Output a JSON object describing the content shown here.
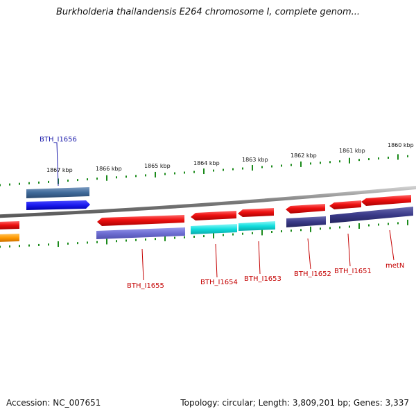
{
  "title": "Burkholderia thailandensis E264 chromosome I, complete genom...",
  "footer": {
    "accession": "Accession: NC_007651",
    "summary": "Topology: circular; Length: 3,809,201 bp; Genes: 3,337"
  },
  "colors": {
    "backbone": "#8a8a8a",
    "tick": "#1a8a1a",
    "label_selected": "#1a1aaa",
    "label_default": "#c40000",
    "forward_gene": "#1a1aee",
    "reverse_gene": "#ee1111",
    "pseudo_light": "#6677cc",
    "cyan_gene": "#11dddd",
    "dark_purple": "#3a3a88",
    "orange_gene": "#ff9900"
  },
  "tick_labels": [
    "1867 kbp",
    "1866 kbp",
    "1865 kbp",
    "1864 kbp",
    "1863 kbp",
    "1862 kbp",
    "1861 kbp",
    "1860 kbp"
  ],
  "genes": [
    {
      "id": "BTH_I1656",
      "label": "BTH_I1656",
      "strand": "forward",
      "selected": true
    },
    {
      "id": "BTH_I1655",
      "label": "BTH_I1655",
      "strand": "reverse",
      "selected": false
    },
    {
      "id": "BTH_I1654",
      "label": "BTH_I1654",
      "strand": "reverse",
      "selected": false
    },
    {
      "id": "BTH_I1653",
      "label": "BTH_I1653",
      "strand": "reverse",
      "selected": false
    },
    {
      "id": "BTH_I1652",
      "label": "BTH_I1652",
      "strand": "reverse",
      "selected": false
    },
    {
      "id": "BTH_I1651",
      "label": "BTH_I1651",
      "strand": "reverse",
      "selected": false
    },
    {
      "id": "metN",
      "label": "metN",
      "strand": "reverse",
      "selected": false
    }
  ]
}
